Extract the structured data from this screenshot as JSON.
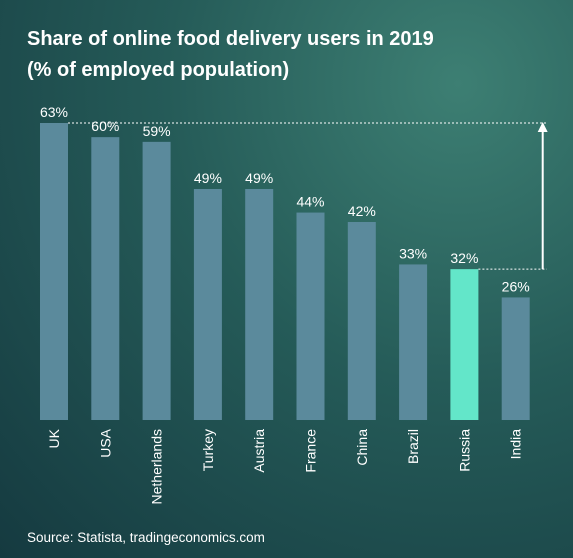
{
  "title_line1": "Share of online food delivery users in 2019",
  "title_line2": "(% of employed population)",
  "source": "Source: Statista, tradingeconomics.com",
  "colors": {
    "bar": "#5b8a9c",
    "highlight": "#63e6c9",
    "label": "#ffffff",
    "guide": "#ffffff"
  },
  "chart_data": {
    "type": "bar",
    "title": "Share of online food delivery users in 2019 (% of employed population)",
    "categories": [
      "UK",
      "USA",
      "Netherlands",
      "Turkey",
      "Austria",
      "France",
      "China",
      "Brazil",
      "Russia",
      "India"
    ],
    "values": [
      63,
      60,
      59,
      49,
      49,
      44,
      42,
      33,
      32,
      26
    ],
    "value_labels": [
      "63%",
      "60%",
      "59%",
      "49%",
      "49%",
      "44%",
      "42%",
      "33%",
      "32%",
      "26%"
    ],
    "highlight_category": "Russia",
    "ylim": [
      0,
      63
    ],
    "grid": false,
    "legend": "none",
    "annotation": "arrow from Russia (32%) up to UK (63%) level"
  }
}
